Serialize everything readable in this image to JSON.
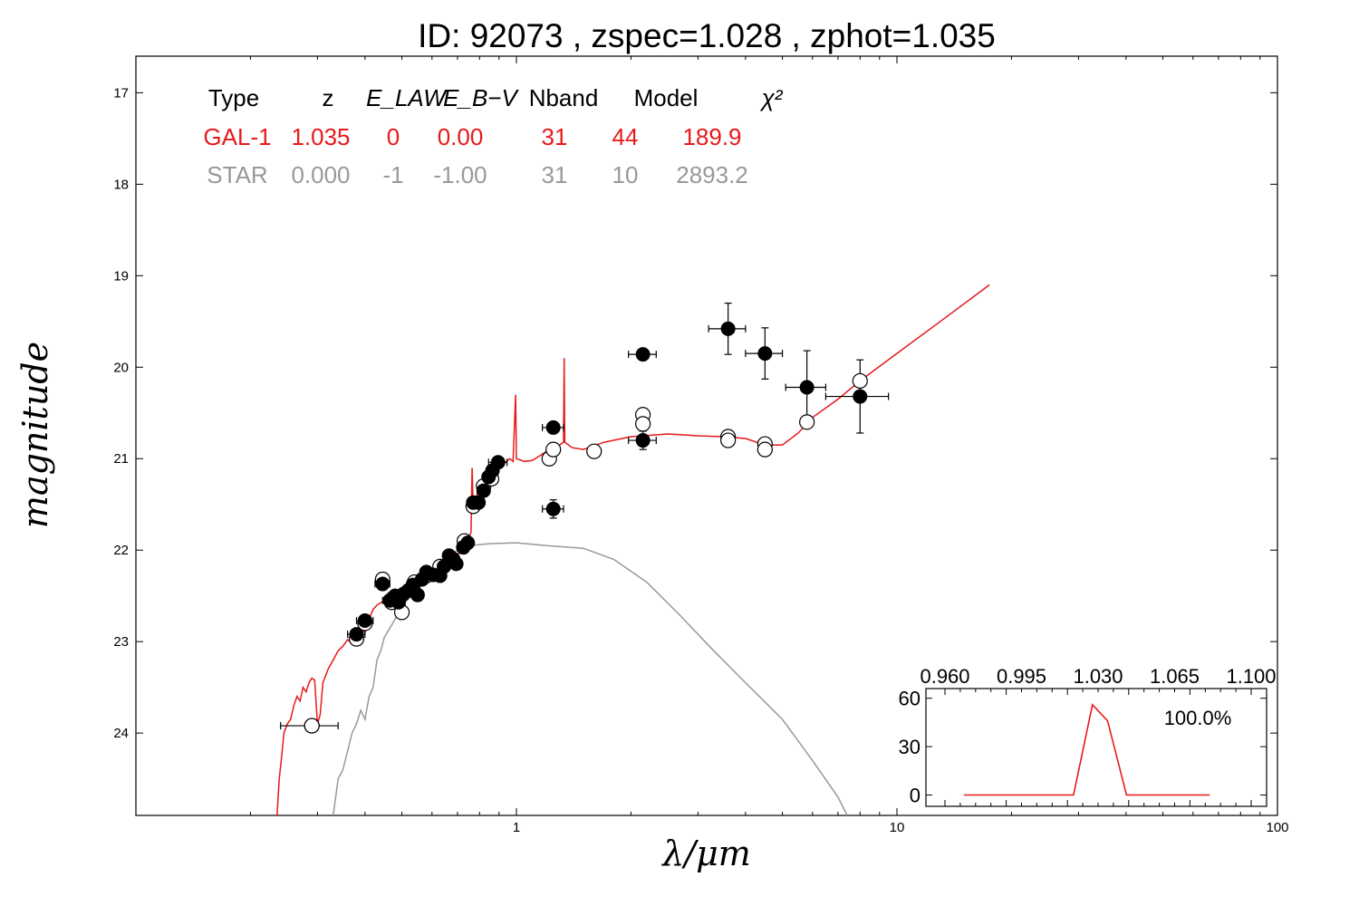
{
  "title": "ID:  92073 , zspec=1.028 , zphot=1.035",
  "chart_data": [
    {
      "type": "scatter",
      "xlabel": "λ/μm",
      "ylabel": "magnitude",
      "x_scale": "log",
      "y_inverted": true,
      "xlim": [
        0.1,
        100
      ],
      "ylim": [
        24.9,
        16.6
      ],
      "x_ticks": [
        "1",
        "10",
        "100"
      ],
      "y_ticks": [
        "17",
        "18",
        "19",
        "20",
        "21",
        "22",
        "23",
        "24"
      ],
      "colors": {
        "galaxy": "#e8191a",
        "star": "#999999",
        "observed": "#000000"
      },
      "table": {
        "headers": [
          "Type",
          "z",
          "E_LAW",
          "E_B−V",
          "Nband",
          "Model",
          "χ²"
        ],
        "rows": [
          {
            "name": "gal",
            "color": "#e8191a",
            "cells": [
              "GAL-1",
              "1.035",
              "0",
              "0.00",
              "31",
              "44",
              "189.9"
            ]
          },
          {
            "name": "star",
            "color": "#999999",
            "cells": [
              "STAR",
              "0.000",
              "-1",
              "-1.00",
              "31",
              "10",
              "2893.2"
            ]
          }
        ]
      },
      "observed": [
        {
          "x": 0.38,
          "y": 22.92,
          "xerr": 0.02,
          "yerr": 0.05
        },
        {
          "x": 0.4,
          "y": 22.77,
          "xerr": 0.02,
          "yerr": 0.05
        },
        {
          "x": 0.445,
          "y": 22.37,
          "xerr": 0.02,
          "yerr": 0.04
        },
        {
          "x": 0.465,
          "y": 22.55,
          "xerr": 0.02,
          "yerr": 0.04
        },
        {
          "x": 0.48,
          "y": 22.5,
          "xerr": 0.02,
          "yerr": 0.04
        },
        {
          "x": 0.49,
          "y": 22.57,
          "xerr": 0.02,
          "yerr": 0.04
        },
        {
          "x": 0.505,
          "y": 22.48,
          "xerr": 0.02,
          "yerr": 0.04
        },
        {
          "x": 0.52,
          "y": 22.44,
          "xerr": 0.02,
          "yerr": 0.04
        },
        {
          "x": 0.535,
          "y": 22.38,
          "xerr": 0.02,
          "yerr": 0.04
        },
        {
          "x": 0.55,
          "y": 22.49,
          "xerr": 0.02,
          "yerr": 0.04
        },
        {
          "x": 0.565,
          "y": 22.32,
          "xerr": 0.02,
          "yerr": 0.04
        },
        {
          "x": 0.58,
          "y": 22.24,
          "xerr": 0.02,
          "yerr": 0.04
        },
        {
          "x": 0.605,
          "y": 22.27,
          "xerr": 0.02,
          "yerr": 0.04
        },
        {
          "x": 0.63,
          "y": 22.28,
          "xerr": 0.02,
          "yerr": 0.04
        },
        {
          "x": 0.645,
          "y": 22.18,
          "xerr": 0.02,
          "yerr": 0.04
        },
        {
          "x": 0.665,
          "y": 22.06,
          "xerr": 0.02,
          "yerr": 0.04
        },
        {
          "x": 0.68,
          "y": 22.1,
          "xerr": 0.02,
          "yerr": 0.04
        },
        {
          "x": 0.695,
          "y": 22.15,
          "xerr": 0.02,
          "yerr": 0.04
        },
        {
          "x": 0.725,
          "y": 21.97,
          "xerr": 0.02,
          "yerr": 0.04
        },
        {
          "x": 0.745,
          "y": 21.92,
          "xerr": 0.02,
          "yerr": 0.04
        },
        {
          "x": 0.77,
          "y": 21.48,
          "xerr": 0.02,
          "yerr": 0.04
        },
        {
          "x": 0.795,
          "y": 21.48,
          "xerr": 0.02,
          "yerr": 0.04
        },
        {
          "x": 0.82,
          "y": 21.35,
          "xerr": 0.02,
          "yerr": 0.04
        },
        {
          "x": 0.845,
          "y": 21.2,
          "xerr": 0.02,
          "yerr": 0.04
        },
        {
          "x": 0.865,
          "y": 21.13,
          "xerr": 0.02,
          "yerr": 0.04
        },
        {
          "x": 0.895,
          "y": 21.04,
          "xerr": 0.05,
          "yerr": 0.04
        },
        {
          "x": 1.25,
          "y": 20.66,
          "xerr": 0.08,
          "yerr": 0.05
        },
        {
          "x": 1.25,
          "y": 21.55,
          "xerr": 0.08,
          "yerr": 0.1
        },
        {
          "x": 2.15,
          "y": 19.86,
          "xerr": 0.18,
          "yerr": 0.06
        },
        {
          "x": 2.15,
          "y": 20.8,
          "xerr": 0.18,
          "yerr": 0.1
        },
        {
          "x": 3.6,
          "y": 19.58,
          "xerr": 0.4,
          "yerr": 0.28
        },
        {
          "x": 4.5,
          "y": 19.85,
          "xerr": 0.5,
          "yerr": 0.28
        },
        {
          "x": 5.8,
          "y": 20.22,
          "xerr": 0.7,
          "yerr": 0.4
        },
        {
          "x": 8.0,
          "y": 20.32,
          "xerr": 1.5,
          "yerr": 0.4
        }
      ],
      "model": [
        {
          "x": 0.38,
          "y": 22.97
        },
        {
          "x": 0.4,
          "y": 22.8
        },
        {
          "x": 0.445,
          "y": 22.32
        },
        {
          "x": 0.47,
          "y": 22.57
        },
        {
          "x": 0.5,
          "y": 22.68
        },
        {
          "x": 0.54,
          "y": 22.35
        },
        {
          "x": 0.58,
          "y": 22.28
        },
        {
          "x": 0.63,
          "y": 22.18
        },
        {
          "x": 0.68,
          "y": 22.1
        },
        {
          "x": 0.73,
          "y": 21.9
        },
        {
          "x": 0.77,
          "y": 21.52
        },
        {
          "x": 0.82,
          "y": 21.3
        },
        {
          "x": 0.86,
          "y": 21.22
        },
        {
          "x": 1.22,
          "y": 21.0
        },
        {
          "x": 1.25,
          "y": 20.9
        },
        {
          "x": 1.6,
          "y": 20.92
        },
        {
          "x": 2.15,
          "y": 20.52
        },
        {
          "x": 2.15,
          "y": 20.62
        },
        {
          "x": 3.6,
          "y": 20.76
        },
        {
          "x": 3.6,
          "y": 20.8
        },
        {
          "x": 4.5,
          "y": 20.84
        },
        {
          "x": 4.5,
          "y": 20.9
        },
        {
          "x": 5.8,
          "y": 20.6
        },
        {
          "x": 8.0,
          "y": 20.15
        },
        {
          "x": 0.29,
          "y": 23.92
        }
      ],
      "galaxy_sed": [
        [
          0.235,
          24.9
        ],
        [
          0.238,
          24.5
        ],
        [
          0.241,
          24.3
        ],
        [
          0.245,
          24.0
        ],
        [
          0.25,
          23.9
        ],
        [
          0.255,
          23.85
        ],
        [
          0.26,
          23.7
        ],
        [
          0.265,
          23.6
        ],
        [
          0.27,
          23.65
        ],
        [
          0.275,
          23.5
        ],
        [
          0.28,
          23.55
        ],
        [
          0.285,
          23.45
        ],
        [
          0.29,
          23.4
        ],
        [
          0.295,
          23.42
        ],
        [
          0.3,
          23.9
        ],
        [
          0.305,
          23.8
        ],
        [
          0.31,
          23.45
        ],
        [
          0.32,
          23.3
        ],
        [
          0.33,
          23.2
        ],
        [
          0.34,
          23.1
        ],
        [
          0.35,
          23.05
        ],
        [
          0.36,
          22.98
        ],
        [
          0.37,
          23.02
        ],
        [
          0.38,
          22.95
        ],
        [
          0.39,
          22.85
        ],
        [
          0.4,
          22.9
        ],
        [
          0.41,
          22.75
        ],
        [
          0.42,
          22.65
        ],
        [
          0.43,
          22.6
        ],
        [
          0.45,
          22.55
        ],
        [
          0.47,
          22.52
        ],
        [
          0.5,
          22.45
        ],
        [
          0.53,
          22.38
        ],
        [
          0.56,
          22.32
        ],
        [
          0.6,
          22.25
        ],
        [
          0.65,
          22.15
        ],
        [
          0.7,
          22.05
        ],
        [
          0.74,
          21.95
        ],
        [
          0.76,
          21.8
        ],
        [
          0.765,
          21.1
        ],
        [
          0.77,
          21.55
        ],
        [
          0.78,
          21.45
        ],
        [
          0.8,
          21.3
        ],
        [
          0.83,
          21.22
        ],
        [
          0.87,
          21.15
        ],
        [
          0.9,
          21.1
        ],
        [
          0.93,
          21.05
        ],
        [
          0.96,
          21.0
        ],
        [
          0.98,
          21.03
        ],
        [
          0.995,
          20.3
        ],
        [
          1.0,
          21.0
        ],
        [
          1.05,
          21.03
        ],
        [
          1.1,
          21.02
        ],
        [
          1.15,
          20.97
        ],
        [
          1.2,
          20.92
        ],
        [
          1.25,
          20.88
        ],
        [
          1.3,
          20.85
        ],
        [
          1.33,
          20.82
        ],
        [
          1.335,
          19.9
        ],
        [
          1.34,
          20.82
        ],
        [
          1.4,
          20.88
        ],
        [
          1.5,
          20.9
        ],
        [
          1.7,
          20.82
        ],
        [
          2.0,
          20.76
        ],
        [
          2.5,
          20.73
        ],
        [
          3.0,
          20.75
        ],
        [
          3.5,
          20.76
        ],
        [
          4.0,
          20.78
        ],
        [
          4.5,
          20.85
        ],
        [
          5.0,
          20.85
        ],
        [
          5.5,
          20.72
        ],
        [
          6.0,
          20.55
        ],
        [
          7.0,
          20.35
        ],
        [
          8.0,
          20.15
        ],
        [
          10,
          19.85
        ],
        [
          13,
          19.5
        ],
        [
          17.5,
          19.1
        ]
      ],
      "star_sed": [
        [
          0.33,
          24.9
        ],
        [
          0.34,
          24.5
        ],
        [
          0.35,
          24.4
        ],
        [
          0.36,
          24.2
        ],
        [
          0.37,
          24.0
        ],
        [
          0.38,
          23.9
        ],
        [
          0.39,
          23.75
        ],
        [
          0.4,
          23.85
        ],
        [
          0.41,
          23.6
        ],
        [
          0.42,
          23.5
        ],
        [
          0.43,
          23.2
        ],
        [
          0.44,
          23.1
        ],
        [
          0.45,
          22.95
        ],
        [
          0.47,
          22.82
        ],
        [
          0.5,
          22.62
        ],
        [
          0.55,
          22.4
        ],
        [
          0.6,
          22.2
        ],
        [
          0.65,
          22.1
        ],
        [
          0.7,
          22.0
        ],
        [
          0.75,
          21.95
        ],
        [
          0.85,
          21.93
        ],
        [
          1.0,
          21.92
        ],
        [
          1.2,
          21.95
        ],
        [
          1.5,
          21.98
        ],
        [
          1.8,
          22.1
        ],
        [
          2.2,
          22.35
        ],
        [
          2.7,
          22.72
        ],
        [
          3.3,
          23.1
        ],
        [
          4.0,
          23.45
        ],
        [
          5.0,
          23.85
        ],
        [
          6.0,
          24.3
        ],
        [
          7.0,
          24.7
        ],
        [
          7.4,
          24.9
        ]
      ]
    },
    {
      "type": "line",
      "x_ticks": [
        "0.960",
        "0.995",
        "1.030",
        "1.065",
        "1.100"
      ],
      "y_ticks": [
        "0",
        "30",
        "60"
      ],
      "xlim": [
        0.96,
        1.1
      ],
      "ylim": [
        -7,
        66
      ],
      "label": "100.0%",
      "series": [
        {
          "color": "#e8191a",
          "x": [
            0.96,
            1.018,
            1.028,
            1.036,
            1.046,
            1.09
          ],
          "y": [
            0,
            0,
            56,
            46,
            0,
            0
          ]
        }
      ]
    }
  ]
}
